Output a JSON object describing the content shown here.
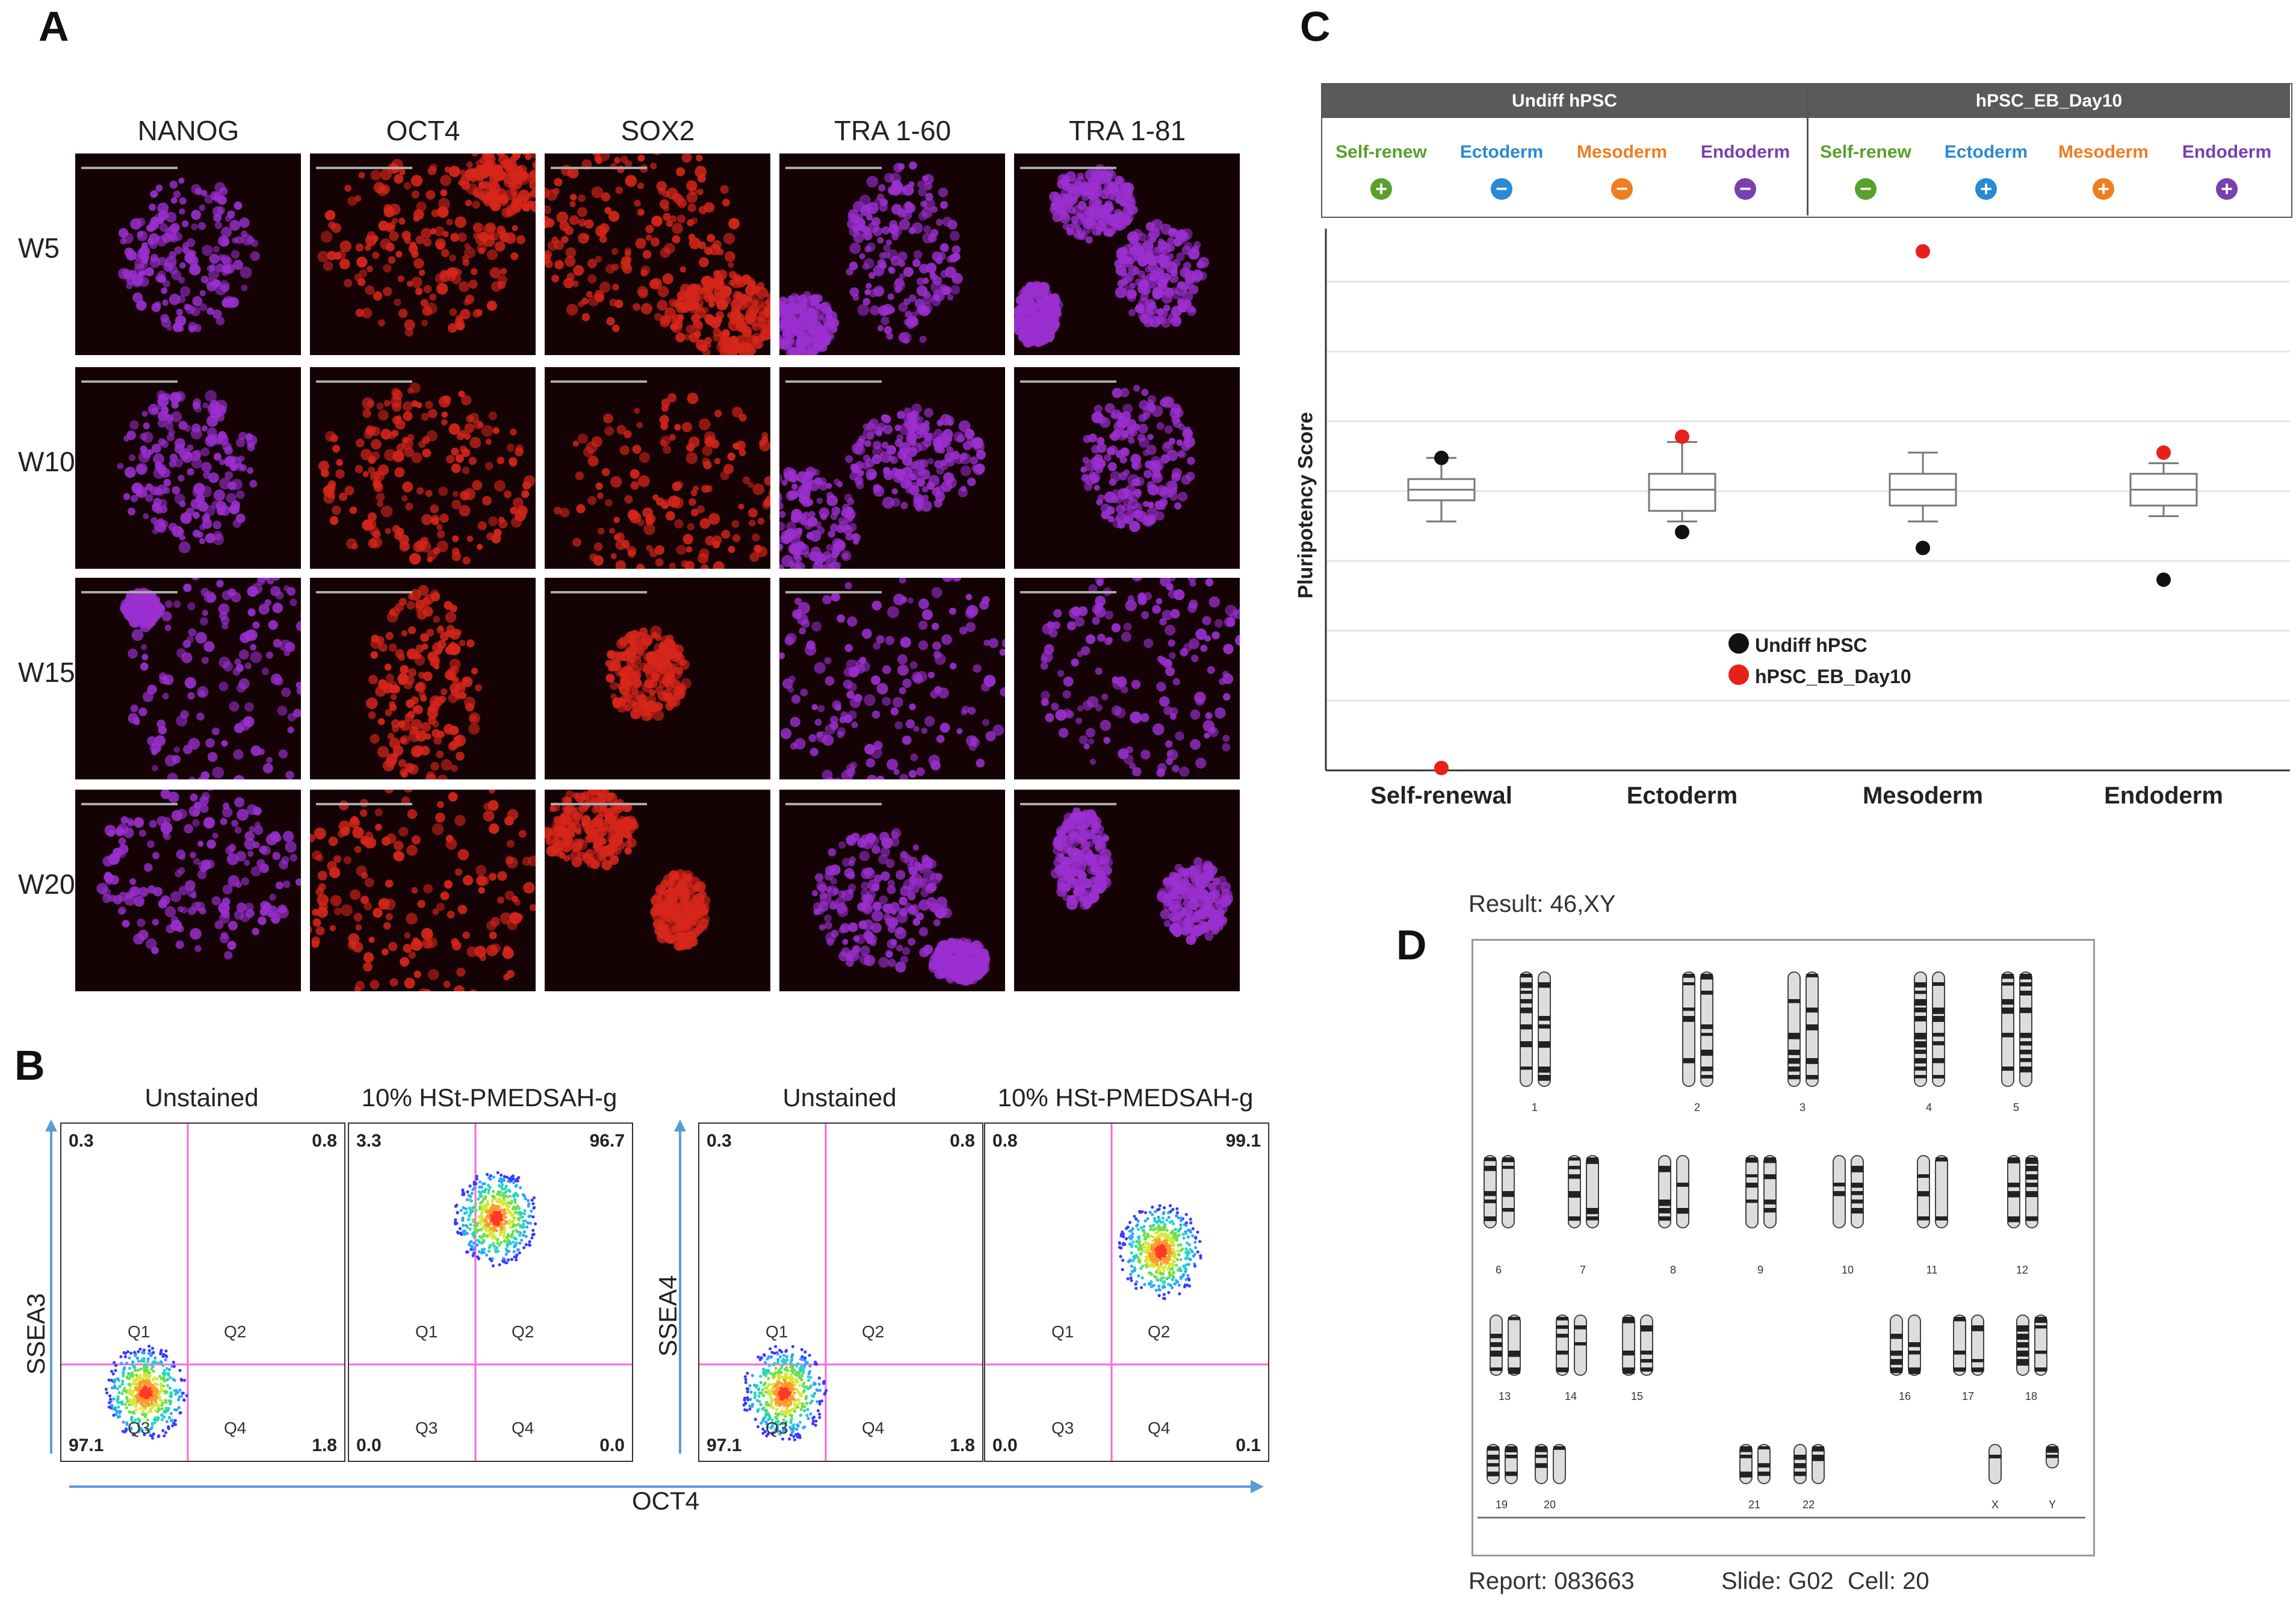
{
  "panels": {
    "a": "A",
    "b": "B",
    "c": "C",
    "d": "D"
  },
  "panel_a": {
    "markers": [
      "NANOG",
      "OCT4",
      "SOX2",
      "TRA 1-60",
      "TRA 1-81"
    ],
    "rows": [
      "W5",
      "W10",
      "W15",
      "W20"
    ],
    "colors": {
      "purple": "#9b2fd0",
      "red": "#d7261a",
      "background": "#140205"
    }
  },
  "panel_b": {
    "left": {
      "y_axis": "SSEA3",
      "plots": [
        {
          "title": "Unstained",
          "q_tl": "0.3",
          "q_tr": "0.8",
          "q_bl": "97.1",
          "q_br": "1.8"
        },
        {
          "title": "10% HSt-PMEDSAH-g",
          "q_tl": "3.3",
          "q_tr": "96.7",
          "q_bl": "0.0",
          "q_br": "0.0"
        }
      ]
    },
    "right": {
      "y_axis": "SSEA4",
      "plots": [
        {
          "title": "Unstained",
          "q_tl": "0.3",
          "q_tr": "0.8",
          "q_bl": "97.1",
          "q_br": "1.8"
        },
        {
          "title": "10% HSt-PMEDSAH-g",
          "q_tl": "0.8",
          "q_tr": "99.1",
          "q_bl": "0.0",
          "q_br": "0.1"
        }
      ]
    },
    "quadrant_labels": [
      "Q1",
      "Q2",
      "Q3",
      "Q4"
    ],
    "x_axis": "OCT4"
  },
  "panel_c": {
    "groups": [
      "Undiff hPSC",
      "hPSC_EB_Day10"
    ],
    "categories_header": [
      {
        "label": "Self-renew",
        "sign": "+",
        "color": "#5aa02c"
      },
      {
        "label": "Ectoderm",
        "sign": "−",
        "color": "#2a8ad4"
      },
      {
        "label": "Mesoderm",
        "sign": "−",
        "color": "#ef7d22"
      },
      {
        "label": "Endoderm",
        "sign": "−",
        "color": "#7a3fb0"
      },
      {
        "label": "Self-renew",
        "sign": "−",
        "color": "#5aa02c"
      },
      {
        "label": "Ectoderm",
        "sign": "+",
        "color": "#2a8ad4"
      },
      {
        "label": "Mesoderm",
        "sign": "+",
        "color": "#ef7d22"
      },
      {
        "label": "Endoderm",
        "sign": "+",
        "color": "#7a3fb0"
      }
    ],
    "y_label": "Pluripotency Score",
    "legend": {
      "undiff": "Undiff hPSC",
      "eb": "hPSC_EB_Day10"
    },
    "chart_data": {
      "type": "box",
      "categories": [
        "Self-renewal",
        "Ectoderm",
        "Mesoderm",
        "Endoderm"
      ],
      "ylabel": "Pluripotency Score",
      "ylim": [
        0,
        100
      ],
      "boxes": [
        {
          "whisker_low": 47,
          "q1": 51,
          "median": 53,
          "q3": 55,
          "whisker_high": 59
        },
        {
          "whisker_low": 47,
          "q1": 49,
          "median": 53,
          "q3": 56,
          "whisker_high": 62
        },
        {
          "whisker_low": 47,
          "q1": 50,
          "median": 53,
          "q3": 56,
          "whisker_high": 60
        },
        {
          "whisker_low": 48,
          "q1": 50,
          "median": 53,
          "q3": 56,
          "whisker_high": 58
        }
      ],
      "series": [
        {
          "name": "Undiff hPSC",
          "color": "#111111",
          "values": [
            59,
            45,
            42,
            36
          ]
        },
        {
          "name": "hPSC_EB_Day10",
          "color": "#e8201a",
          "values": [
            0,
            63,
            98,
            60
          ]
        }
      ]
    }
  },
  "panel_d": {
    "result": "Result: 46,XY",
    "report": "Report: 083663",
    "slide": "Slide: G02",
    "cell": "Cell: 20",
    "chromosome_labels": [
      "1",
      "2",
      "3",
      "4",
      "5",
      "6",
      "7",
      "8",
      "9",
      "10",
      "11",
      "12",
      "13",
      "14",
      "15",
      "16",
      "17",
      "18",
      "19",
      "20",
      "21",
      "22",
      "X",
      "Y"
    ]
  }
}
